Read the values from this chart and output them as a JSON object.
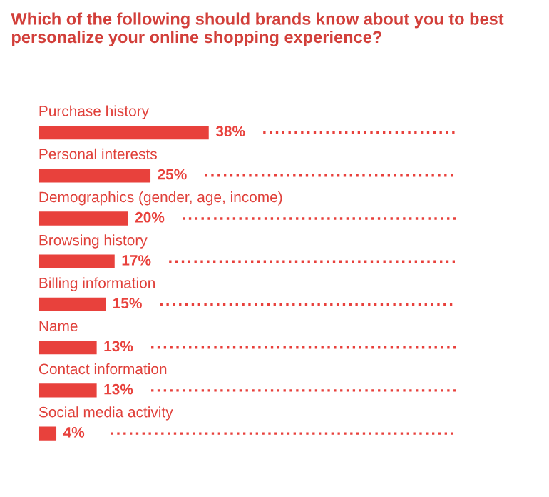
{
  "chart_data": {
    "type": "bar",
    "orientation": "horizontal",
    "title": "Which of the following should brands know about you to best personalize your online shopping experience?",
    "categories": [
      "Purchase history",
      "Personal interests",
      "Demographics (gender, age, income)",
      "Browsing history",
      "Billing information",
      "Name",
      "Contact information",
      "Social media activity"
    ],
    "series": [
      {
        "color": "#e8413c",
        "values": [
          38,
          25,
          20,
          17,
          15,
          13,
          13,
          4
        ],
        "value_labels": [
          "38%",
          "25%",
          "20%",
          "17%",
          "15%",
          "13%",
          "13%",
          "4%"
        ]
      }
    ],
    "line_style": "dotted"
  }
}
